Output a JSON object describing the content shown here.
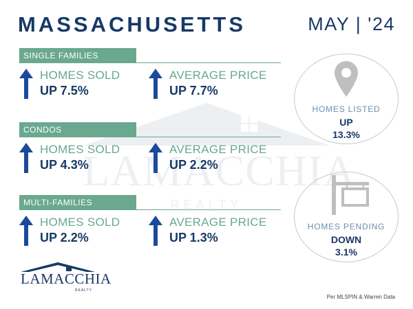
{
  "header": {
    "title": "MASSACHUSETTS",
    "date": "MAY | '24"
  },
  "sections": [
    {
      "label": "SINGLE FAMILIES",
      "stats": [
        {
          "label": "HOMES SOLD",
          "value": "UP 7.5%",
          "icon": "arrow-up-icon"
        },
        {
          "label": "AVERAGE PRICE",
          "value": "UP 7.7%",
          "icon": "arrow-up-icon"
        }
      ]
    },
    {
      "label": "CONDOS",
      "stats": [
        {
          "label": "HOMES SOLD",
          "value": "UP 4.3%",
          "icon": "arrow-up-icon"
        },
        {
          "label": "AVERAGE PRICE",
          "value": "UP 2.2%",
          "icon": "arrow-up-icon"
        }
      ]
    },
    {
      "label": "MULTI-FAMILIES",
      "stats": [
        {
          "label": "HOMES SOLD",
          "value": "UP 2.2%",
          "icon": "arrow-up-icon"
        },
        {
          "label": "AVERAGE PRICE",
          "value": "UP 1.3%",
          "icon": "arrow-up-icon"
        }
      ]
    }
  ],
  "listed": {
    "label": "HOMES LISTED",
    "direction": "UP",
    "value": "13.3%",
    "icon": "map-pin-icon"
  },
  "pending": {
    "label": "HOMES PENDING",
    "direction": "DOWN",
    "value": "3.1%",
    "icon": "sign-post-icon"
  },
  "logo": {
    "text": "LAMACCHIA",
    "sub": "REALTY"
  },
  "watermark": {
    "text": "LAMACCHIA",
    "sub": "REALTY"
  },
  "source": "Per MLSPIN & Warren Data",
  "colors": {
    "navy": "#173a66",
    "arrow": "#1b4a9c",
    "green": "#6aa88f",
    "circle_border": "#c8c8c8",
    "icon_gray": "#bfbfbf"
  }
}
